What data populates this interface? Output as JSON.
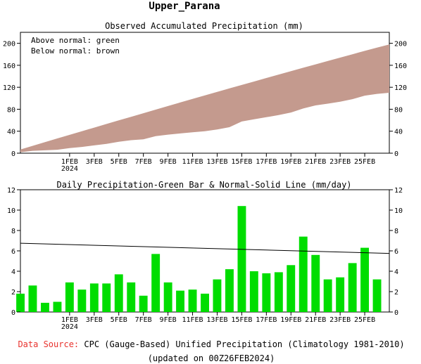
{
  "page": {
    "main_title": "Upper_Parana",
    "footer": {
      "source_label": "Data Source:",
      "source_text": "CPC (Gauge-Based) Unified Precipitation (Climatology 1981-2010)",
      "updated": "(updated on 00Z26FEB2024)"
    },
    "colors": {
      "above": "#00dd00",
      "below": "#c49a8e",
      "source_label": "#e8322d"
    }
  },
  "chart_data": [
    {
      "type": "area",
      "title": "Observed Accumulated Precipitation (mm)",
      "legend_lines": [
        "Above normal: green",
        "Below normal: brown"
      ],
      "ylim": [
        0,
        220
      ],
      "yticks": [
        0,
        40,
        80,
        120,
        160,
        200
      ],
      "xlim": [
        0,
        30
      ],
      "xticks": [
        {
          "x": 4,
          "label": "1FEB",
          "sub": "2024"
        },
        {
          "x": 6,
          "label": "3FEB"
        },
        {
          "x": 8,
          "label": "5FEB"
        },
        {
          "x": 10,
          "label": "7FEB"
        },
        {
          "x": 12,
          "label": "9FEB"
        },
        {
          "x": 14,
          "label": "11FEB"
        },
        {
          "x": 16,
          "label": "13FEB"
        },
        {
          "x": 18,
          "label": "15FEB"
        },
        {
          "x": 20,
          "label": "17FEB"
        },
        {
          "x": 22,
          "label": "19FEB"
        },
        {
          "x": 24,
          "label": "21FEB"
        },
        {
          "x": 26,
          "label": "23FEB"
        },
        {
          "x": 28,
          "label": "25FEB"
        }
      ],
      "series": [
        {
          "name": "Observed",
          "x": [
            0,
            1,
            2,
            3,
            4,
            5,
            6,
            7,
            8,
            9,
            10,
            11,
            12,
            13,
            14,
            15,
            16,
            17,
            18,
            19,
            20,
            21,
            22,
            23,
            24,
            25,
            26,
            27,
            28,
            29,
            30
          ],
          "values": [
            1.8,
            4.4,
            5.3,
            6.3,
            9.2,
            11.4,
            14.2,
            17.0,
            20.7,
            23.6,
            25.2,
            30.9,
            33.8,
            35.9,
            38.1,
            39.9,
            43.1,
            47.3,
            57.7,
            61.7,
            65.5,
            69.4,
            74.0,
            81.4,
            87.0,
            90.2,
            93.6,
            98.4,
            104.7,
            108.0,
            110.0
          ]
        },
        {
          "name": "Normal",
          "x": [
            0,
            1,
            2,
            3,
            4,
            5,
            6,
            7,
            8,
            9,
            10,
            11,
            12,
            13,
            14,
            15,
            16,
            17,
            18,
            19,
            20,
            21,
            22,
            23,
            24,
            25,
            26,
            27,
            28,
            29,
            30
          ],
          "values": [
            6.7,
            13.4,
            20.1,
            26.8,
            33.4,
            40.0,
            46.6,
            53.2,
            59.8,
            66.3,
            72.8,
            79.3,
            85.8,
            92.3,
            98.7,
            105.1,
            111.5,
            117.9,
            124.2,
            130.5,
            136.8,
            143.1,
            149.3,
            155.5,
            161.7,
            167.9,
            174.0,
            180.1,
            186.2,
            192.2,
            198.0
          ]
        }
      ]
    },
    {
      "type": "bar",
      "title": "Daily Precipitation-Green Bar & Normal-Solid Line (mm/day)",
      "ylim": [
        0,
        12
      ],
      "yticks": [
        0,
        2,
        4,
        6,
        8,
        10,
        12
      ],
      "xlim": [
        0,
        30
      ],
      "series": [
        {
          "name": "Daily Precipitation",
          "x": [
            0,
            1,
            2,
            3,
            4,
            5,
            6,
            7,
            8,
            9,
            10,
            11,
            12,
            13,
            14,
            15,
            16,
            17,
            18,
            19,
            20,
            21,
            22,
            23,
            24,
            25,
            26,
            27,
            28,
            29
          ],
          "values": [
            1.8,
            2.6,
            0.9,
            1.0,
            2.9,
            2.2,
            2.8,
            2.8,
            3.7,
            2.9,
            1.6,
            5.7,
            2.9,
            2.1,
            2.2,
            1.8,
            3.2,
            4.2,
            10.4,
            4.0,
            3.8,
            3.9,
            4.6,
            7.4,
            5.6,
            3.2,
            3.4,
            4.8,
            6.3,
            3.2
          ]
        },
        {
          "name": "Normal",
          "x": [
            0,
            30
          ],
          "values": [
            6.75,
            5.75
          ]
        }
      ]
    }
  ]
}
